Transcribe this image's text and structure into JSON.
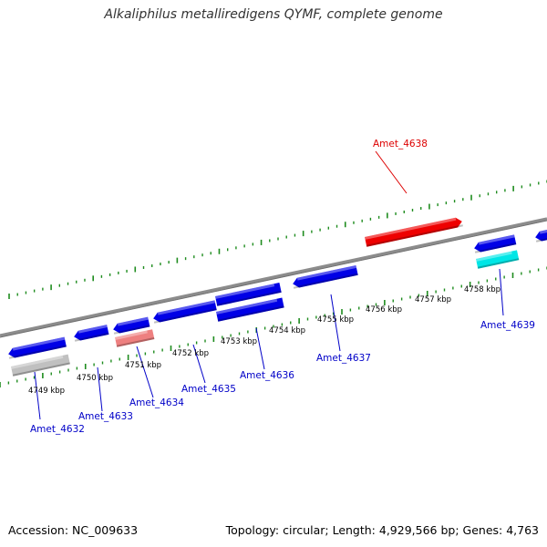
{
  "title": "Alkaliphilus metalliredigens QYMF, complete genome",
  "footer": {
    "accession": "Accession: NC_009633",
    "summary": "Topology: circular; Length: 4,929,566 bp; Genes: 4,763"
  },
  "colors": {
    "backbone": "#8c8c8c",
    "tick": "#1e8c1e",
    "forward_gene": "#0000e6",
    "highlight_gene": "#ee0000",
    "cyan_gene": "#00e6e6",
    "pink_gene": "#ee8080",
    "gray_gene": "#c0c0c0",
    "blue_label": "#0000c8",
    "red_label": "#dd0000"
  },
  "scale_labels": [
    "4749 kbp",
    "4750 kbp",
    "4751 kbp",
    "4752 kbp",
    "4753 kbp",
    "4754 kbp",
    "4755 kbp",
    "4756 kbp",
    "4757 kbp",
    "4758 kbp"
  ],
  "genes": [
    {
      "label": "Amet_4632",
      "color": "blue_label",
      "icon": "gene-arrow-left"
    },
    {
      "label": "Amet_4633",
      "color": "blue_label",
      "icon": "gene-arrow-left"
    },
    {
      "label": "Amet_4634",
      "color": "blue_label",
      "icon": "gene-arrow-left"
    },
    {
      "label": "Amet_4635",
      "color": "blue_label",
      "icon": "gene-arrow-left"
    },
    {
      "label": "Amet_4636",
      "color": "blue_label",
      "icon": "gene-arrow-left"
    },
    {
      "label": "Amet_4637",
      "color": "blue_label",
      "icon": "gene-arrow-left"
    },
    {
      "label": "Amet_4638",
      "color": "red_label",
      "icon": "gene-arrow-right"
    },
    {
      "label": "Amet_4639",
      "color": "blue_label",
      "icon": "gene-arrow-left"
    }
  ]
}
